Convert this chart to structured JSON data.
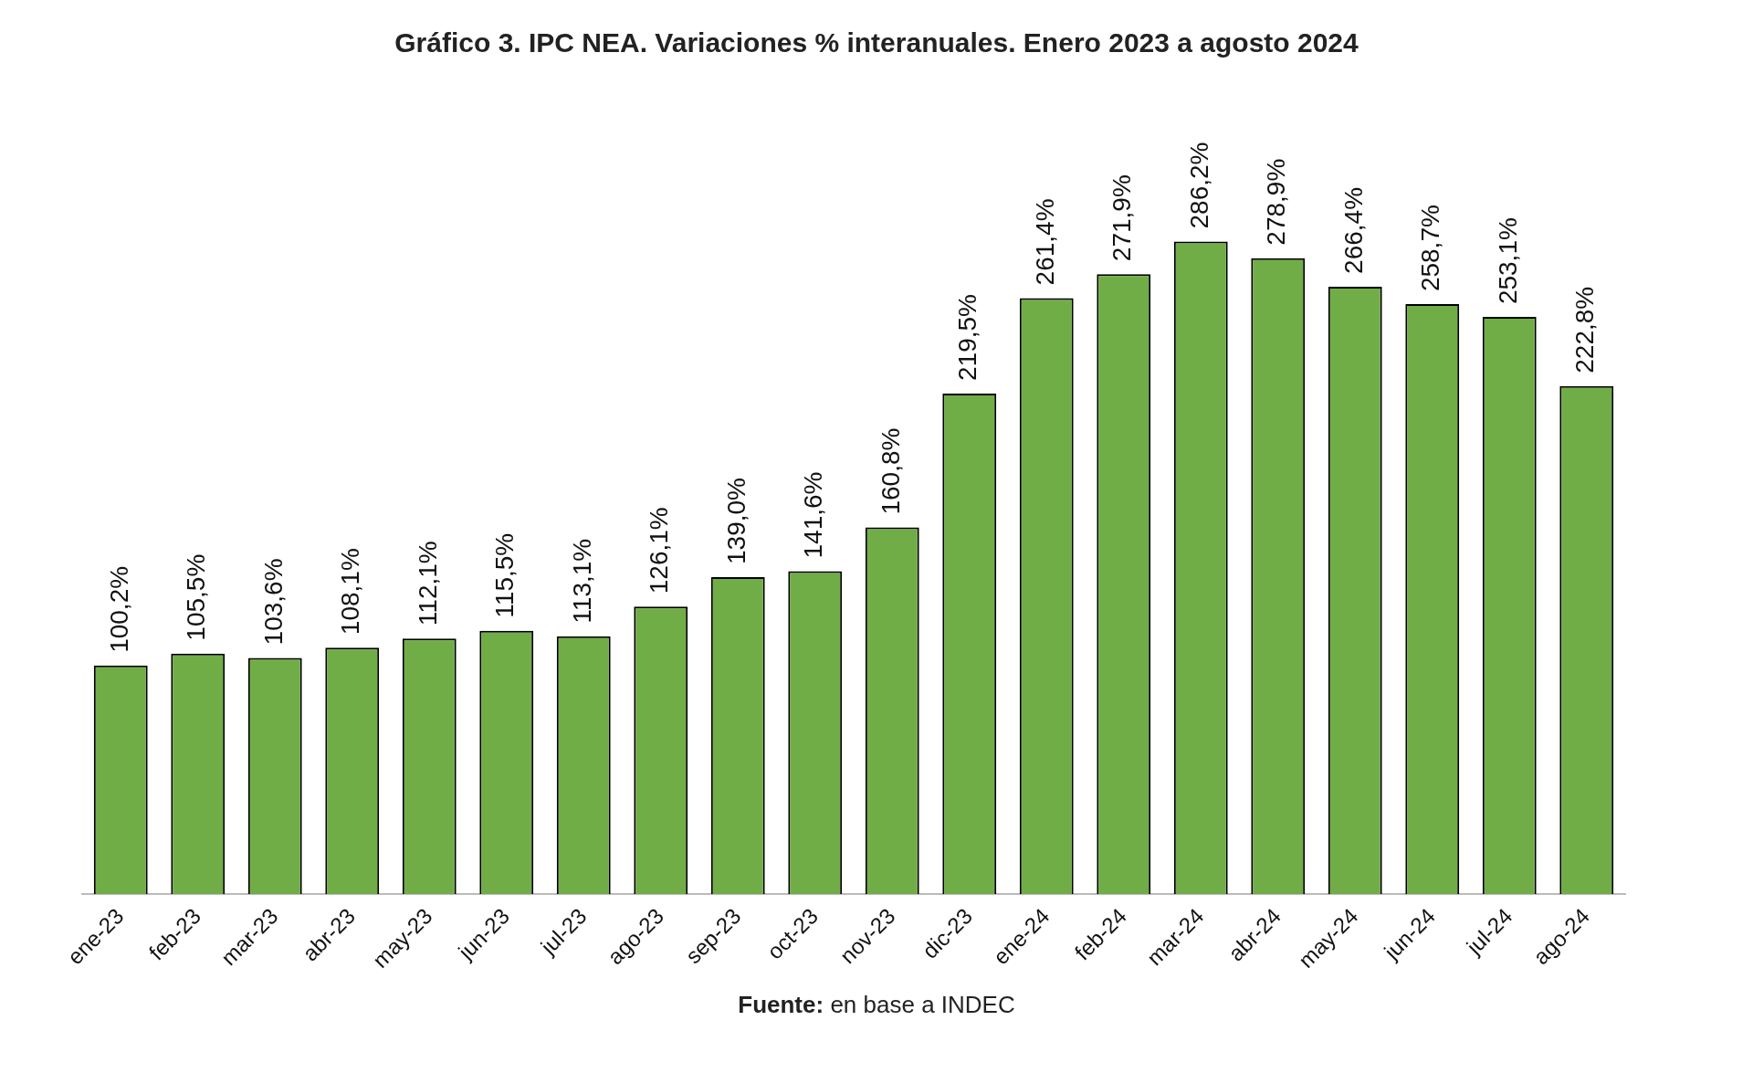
{
  "chart_data": {
    "type": "bar",
    "title": "Gráfico 3. IPC NEA. Variaciones % interanuales. Enero 2023 a agosto 2024",
    "categories": [
      "ene-23",
      "feb-23",
      "mar-23",
      "abr-23",
      "may-23",
      "jun-23",
      "jul-23",
      "ago-23",
      "sep-23",
      "oct-23",
      "nov-23",
      "dic-23",
      "ene-24",
      "feb-24",
      "mar-24",
      "abr-24",
      "may-24",
      "jun-24",
      "jul-24",
      "ago-24"
    ],
    "values": [
      100.2,
      105.5,
      103.6,
      108.1,
      112.1,
      115.5,
      113.1,
      126.1,
      139.0,
      141.6,
      160.8,
      219.5,
      261.4,
      271.9,
      286.2,
      278.9,
      266.4,
      258.7,
      253.1,
      222.8
    ],
    "value_labels": [
      "100,2%",
      "105,5%",
      "103,6%",
      "108,1%",
      "112,1%",
      "115,5%",
      "113,1%",
      "126,1%",
      "139,0%",
      "141,6%",
      "160,8%",
      "219,5%",
      "261,4%",
      "271,9%",
      "286,2%",
      "278,9%",
      "266,4%",
      "258,7%",
      "253,1%",
      "222,8%"
    ],
    "color": "#70ad47",
    "grid": false,
    "legend": false,
    "annotations": [
      "Fuente: en base a INDEC"
    ]
  }
}
